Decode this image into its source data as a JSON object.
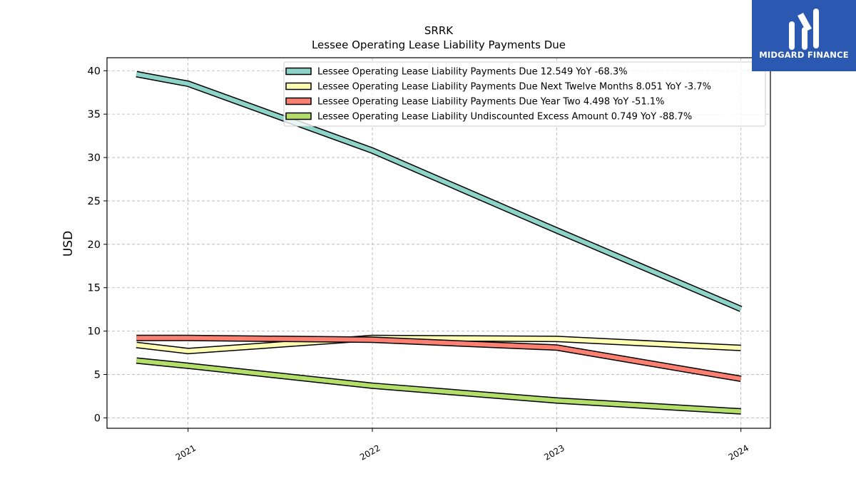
{
  "logo": {
    "text": "MIDGARD FINANCE",
    "background": "#2b58b0"
  },
  "chart_data": {
    "type": "line",
    "title": "SRRK",
    "subtitle": "Lessee Operating Lease Liability Payments Due",
    "xlabel": "",
    "ylabel": "USD",
    "x": [
      2020.72,
      2021.0,
      2022.0,
      2023.0,
      2024.0
    ],
    "x_ticks": [
      "2021",
      "2022",
      "2023",
      "2024"
    ],
    "y_ticks": [
      "0",
      "5",
      "10",
      "15",
      "20",
      "25",
      "30",
      "35",
      "40"
    ],
    "xlim": [
      2020.56,
      2024.16
    ],
    "ylim": [
      -1.2,
      41.5
    ],
    "grid": true,
    "legend_position": "top-right",
    "series": [
      {
        "name": "Lessee Operating Lease Liability Payments Due  12.549 YoY -68.3%",
        "color": "#8dd3c7",
        "values": [
          39.6,
          38.5,
          30.8,
          21.6,
          12.549
        ]
      },
      {
        "name": "Lessee Operating Lease Liability Payments Due Next Twelve Months  8.051 YoY -3.7%",
        "color": "#ffffb3",
        "values": [
          8.4,
          7.7,
          9.2,
          9.1,
          8.051
        ]
      },
      {
        "name": "Lessee Operating Lease Liability Payments Due Year Two  4.498 YoY -51.1%",
        "color": "#fb8072",
        "values": [
          9.2,
          9.2,
          9.0,
          8.1,
          4.498
        ]
      },
      {
        "name": "Lessee Operating Lease Liability Undiscounted Excess Amount  0.749 YoY -88.7%",
        "color": "#b3de69",
        "values": [
          6.6,
          6.0,
          3.7,
          2.0,
          0.749
        ]
      }
    ]
  }
}
